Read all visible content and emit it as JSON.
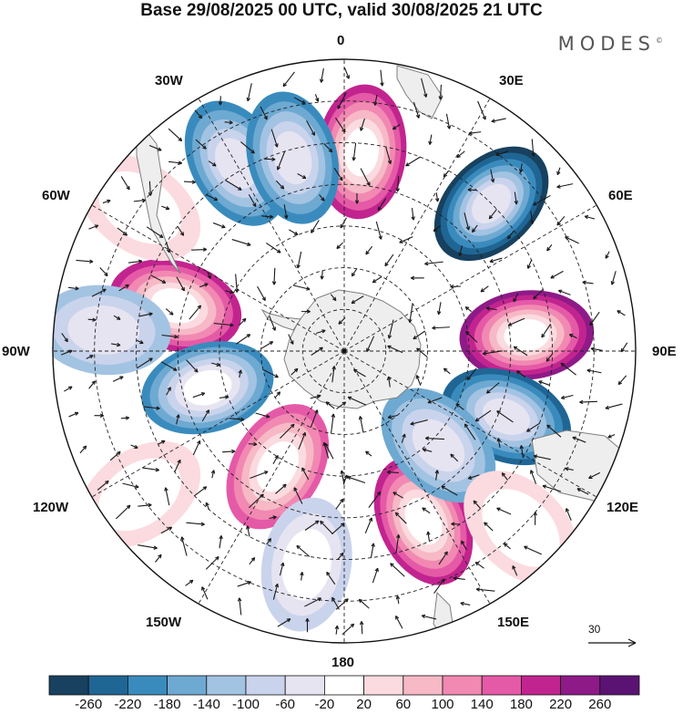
{
  "title": "Base 29/08/2025 00 UTC, valid 30/08/2025 21 UTC",
  "brand": {
    "name": "MODES",
    "mark": "©"
  },
  "longitude_labels": {
    "top": "0",
    "bottom": "180",
    "e30": "30E",
    "e60": "60E",
    "e90": "90E",
    "e120": "120E",
    "e150": "150E",
    "w30": "30W",
    "w60": "60W",
    "w90": "90W",
    "w120": "120W",
    "w150": "150W"
  },
  "reference_vector": {
    "label": "30"
  },
  "colorbar": {
    "colors": [
      "#17415f",
      "#1f6695",
      "#3a8bbd",
      "#6ea9d2",
      "#a3c3e2",
      "#c9d3ec",
      "#e6e4f1",
      "#ffffff",
      "#fbdbdf",
      "#f6b9c5",
      "#f189b2",
      "#e55aa7",
      "#c2248f",
      "#8e1a88",
      "#5b1373"
    ],
    "tick_labels": [
      "-260",
      "-220",
      "-180",
      "-140",
      "-100",
      "-60",
      "-20",
      "20",
      "60",
      "100",
      "140",
      "180",
      "220",
      "260"
    ]
  },
  "colors": {
    "land": "#eeeeee",
    "coast": "#7f7f7f",
    "grid": "#222222"
  },
  "anomaly_cells": [
    {
      "name": "cell-n-pink",
      "value": 200,
      "lat": -42,
      "lon": 5
    },
    {
      "name": "cell-ne-blue",
      "value": -250,
      "lat": -40,
      "lon": 45
    },
    {
      "name": "cell-e-purple",
      "value": 250,
      "lat": -46,
      "lon": 85
    },
    {
      "name": "cell-e-blue",
      "value": -220,
      "lat": -48,
      "lon": 112
    },
    {
      "name": "cell-nw-blue-a",
      "value": -180,
      "lat": -38,
      "lon": -30
    },
    {
      "name": "cell-nw-blue-b",
      "value": -170,
      "lat": -42,
      "lon": -15
    },
    {
      "name": "cell-w-pink",
      "value": 200,
      "lat": -48,
      "lon": -75
    },
    {
      "name": "cell-w-blue",
      "value": -200,
      "lat": -56,
      "lon": -105
    },
    {
      "name": "cell-sw-pink",
      "value": 160,
      "lat": -58,
      "lon": -150
    },
    {
      "name": "cell-s-pink",
      "value": 200,
      "lat": -45,
      "lon": 155
    },
    {
      "name": "cell-se-blue",
      "value": -140,
      "lat": -58,
      "lon": 135
    },
    {
      "name": "cell-far-w-blue",
      "value": -100,
      "lat": -32,
      "lon": -85
    },
    {
      "name": "cell-far-nw-pink",
      "value": 60,
      "lat": -30,
      "lon": -55
    },
    {
      "name": "cell-far-sw-pink",
      "value": 60,
      "lat": -30,
      "lon": -125
    },
    {
      "name": "cell-far-se-pink",
      "value": 60,
      "lat": -30,
      "lon": 135
    },
    {
      "name": "cell-s-blue",
      "value": -80,
      "lat": -38,
      "lon": -170
    }
  ]
}
